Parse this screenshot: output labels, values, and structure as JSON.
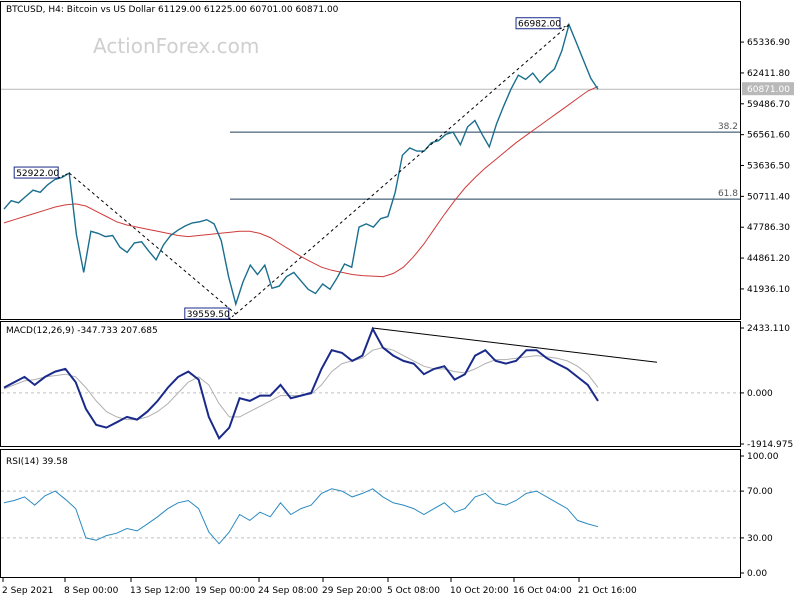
{
  "watermark": "ActionForex.com",
  "chart_data": [
    {
      "type": "line",
      "title": "BTCUSD, H4:  Bitcoin vs US Dollar  61129.00 61225.00 60701.00 60871.00",
      "ylim": [
        39559.5,
        68000
      ],
      "y_ticks": [
        {
          "v": 65336.9,
          "t": "65336.90"
        },
        {
          "v": 62411.8,
          "t": "62411.80"
        },
        {
          "v": 59486.7,
          "t": "59486.70"
        },
        {
          "v": 56561.6,
          "t": "56561.60"
        },
        {
          "v": 53636.5,
          "t": "53636.50"
        },
        {
          "v": 50711.4,
          "t": "50711.40"
        },
        {
          "v": 47786.3,
          "t": "47786.30"
        },
        {
          "v": 44861.2,
          "t": "44861.20"
        },
        {
          "v": 41936.1,
          "t": "41936.10"
        }
      ],
      "current_price": {
        "value": 60871.0,
        "label": "60871.00"
      },
      "fib_levels": [
        {
          "value": 56800,
          "label": "38.2"
        },
        {
          "value": 50450,
          "label": "61.8"
        }
      ],
      "annotations": [
        {
          "label": "52922.00",
          "value": 52922.0
        },
        {
          "label": "66982.00",
          "value": 66982.0
        },
        {
          "label": "39559.50",
          "value": 39559.5
        }
      ],
      "series": [
        {
          "name": "price",
          "color": "#1a6e8e",
          "values": [
            49500,
            50300,
            50100,
            50700,
            51300,
            51100,
            51800,
            52300,
            52500,
            52922,
            47100,
            43500,
            47400,
            47200,
            46900,
            47000,
            45900,
            45400,
            46300,
            46400,
            45500,
            44700,
            46100,
            47000,
            47500,
            47900,
            48200,
            48300,
            48500,
            48100,
            46500,
            43100,
            40500,
            42600,
            44200,
            43300,
            44200,
            42000,
            42200,
            43100,
            43500,
            42700,
            41900,
            41500,
            42400,
            41900,
            43000,
            44300,
            44000,
            47800,
            48100,
            47800,
            48600,
            48800,
            51100,
            54600,
            55300,
            55000,
            55000,
            55800,
            56000,
            56600,
            56800,
            55600,
            57300,
            57900,
            56600,
            55400,
            57600,
            59300,
            60900,
            62200,
            61800,
            62400,
            61500,
            62200,
            62800,
            64500,
            66982,
            65300,
            63600,
            61900,
            60871
          ]
        },
        {
          "name": "ma",
          "color": "#d13a3a",
          "values": [
            48200,
            48500,
            48800,
            49100,
            49400,
            49700,
            49900,
            50000,
            49800,
            49300,
            48800,
            48300,
            48000,
            47800,
            47600,
            47400,
            47200,
            47000,
            46900,
            47000,
            47100,
            47200,
            47300,
            47400,
            47400,
            47200,
            46800,
            46200,
            45600,
            45000,
            44500,
            44000,
            43700,
            43500,
            43300,
            43200,
            43150,
            43100,
            43400,
            44000,
            45000,
            46200,
            47600,
            49000,
            50300,
            51500,
            52500,
            53400,
            54200,
            55000,
            55800,
            56500,
            57200,
            57900,
            58600,
            59300,
            60000,
            60700,
            61129
          ]
        }
      ]
    },
    {
      "type": "line",
      "title": "MACD(12,26,9) -347.733 207.685",
      "ylim": [
        -1914.975,
        2433.11
      ],
      "y_ticks": [
        {
          "v": 2433.11,
          "t": "2433.110"
        },
        {
          "v": 0.0,
          "t": "0.000"
        },
        {
          "v": -1914.975,
          "t": "-1914.975"
        }
      ],
      "series": [
        {
          "name": "MACD",
          "color": "#1a2a8a",
          "values": [
            200,
            400,
            600,
            300,
            600,
            800,
            900,
            400,
            -600,
            -1200,
            -1300,
            -1100,
            -900,
            -1000,
            -700,
            -300,
            200,
            600,
            800,
            500,
            -900,
            -1700,
            -1300,
            -200,
            -300,
            -100,
            -100,
            300,
            -200,
            -100,
            0,
            900,
            1600,
            1500,
            1200,
            1400,
            2400,
            1700,
            1400,
            1200,
            1100,
            700,
            900,
            1000,
            500,
            700,
            1400,
            1600,
            1200,
            1100,
            1200,
            1600,
            1600,
            1300,
            1100,
            900,
            600,
            300,
            -300
          ]
        },
        {
          "name": "Signal",
          "color": "#b0b0b0",
          "values": [
            150,
            300,
            450,
            500,
            600,
            650,
            700,
            600,
            200,
            -300,
            -700,
            -900,
            -1000,
            -1000,
            -900,
            -700,
            -400,
            0,
            400,
            600,
            300,
            -400,
            -900,
            -900,
            -700,
            -500,
            -300,
            -100,
            -100,
            -100,
            -50,
            300,
            800,
            1100,
            1200,
            1300,
            1600,
            1700,
            1600,
            1400,
            1200,
            1000,
            900,
            900,
            800,
            750,
            900,
            1100,
            1250,
            1250,
            1300,
            1350,
            1400,
            1350,
            1300,
            1200,
            1000,
            700,
            207.685
          ]
        }
      ],
      "trendline": {
        "from": 2433.11,
        "to": 1150
      }
    },
    {
      "type": "line",
      "title": "RSI(14) 39.58",
      "ylim": [
        0,
        100
      ],
      "y_ticks": [
        {
          "v": 100,
          "t": "100.00"
        },
        {
          "v": 70,
          "t": "70.00"
        },
        {
          "v": 30,
          "t": "30.00"
        },
        {
          "v": 0,
          "t": "0.00"
        }
      ],
      "series": [
        {
          "name": "RSI",
          "color": "#2a8ac0",
          "values": [
            60,
            62,
            65,
            58,
            66,
            70,
            63,
            55,
            30,
            28,
            32,
            34,
            38,
            36,
            42,
            48,
            55,
            60,
            62,
            55,
            35,
            25,
            35,
            50,
            45,
            52,
            48,
            60,
            50,
            55,
            58,
            68,
            72,
            70,
            65,
            68,
            72,
            65,
            60,
            58,
            55,
            50,
            55,
            60,
            52,
            55,
            65,
            68,
            60,
            58,
            62,
            68,
            70,
            65,
            60,
            55,
            45,
            42,
            39.58
          ]
        }
      ]
    }
  ],
  "x_ticks": [
    {
      "i": 0,
      "t": "2 Sep 2021"
    },
    {
      "i": 1,
      "t": "8 Sep 00:00"
    },
    {
      "i": 2,
      "t": "13 Sep 12:00"
    },
    {
      "i": 3,
      "t": "19 Sep 00:00"
    },
    {
      "i": 4,
      "t": "24 Sep 08:00"
    },
    {
      "i": 5,
      "t": "29 Sep 20:00"
    },
    {
      "i": 6,
      "t": "5 Oct 08:00"
    },
    {
      "i": 7,
      "t": "10 Oct 20:00"
    },
    {
      "i": 8,
      "t": "16 Oct 04:00"
    },
    {
      "i": 9,
      "t": "21 Oct 16:00"
    }
  ]
}
